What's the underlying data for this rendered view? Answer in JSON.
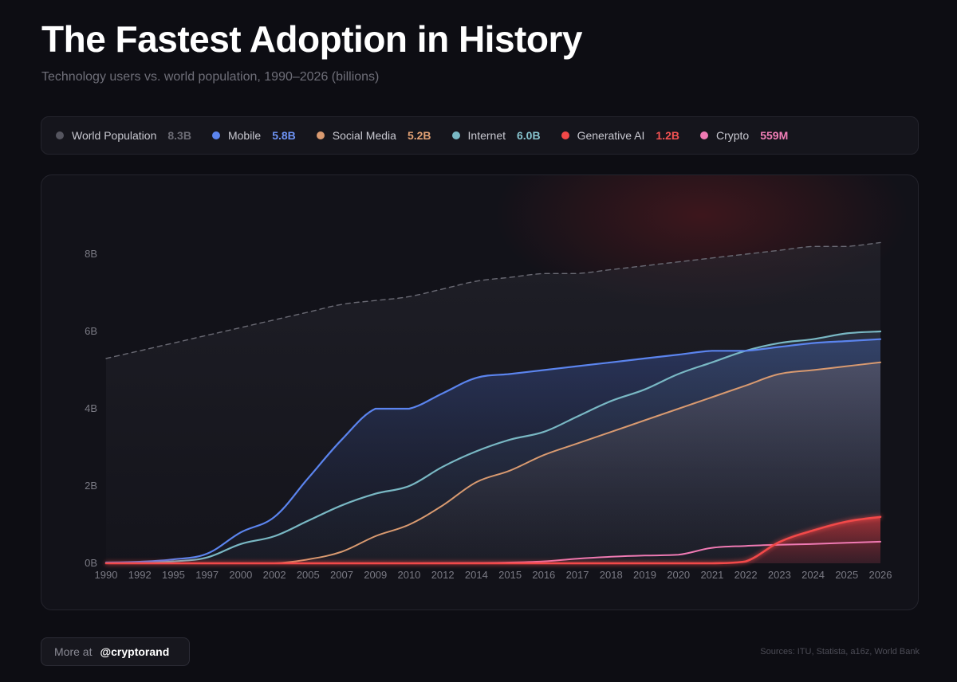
{
  "header": {
    "title": "The Fastest Adoption in History",
    "subtitle": "Technology users vs. world population, 1990–2026 (billions)"
  },
  "legend": [
    {
      "label": "World Population",
      "value": "8.3B",
      "color": "#55555f",
      "value_color": "#6b6b74"
    },
    {
      "label": "Mobile",
      "value": "5.8B",
      "color": "#5b84ee",
      "value_color": "#6e93f4"
    },
    {
      "label": "Social Media",
      "value": "5.2B",
      "color": "#d99a70",
      "value_color": "#e1a074"
    },
    {
      "label": "Internet",
      "value": "6.0B",
      "color": "#79b8c4",
      "value_color": "#86c3cd"
    },
    {
      "label": "Generative AI",
      "value": "1.2B",
      "color": "#f24848",
      "value_color": "#f25252"
    },
    {
      "label": "Crypto",
      "value": "559M",
      "color": "#f07ab4",
      "value_color": "#f27fb8"
    }
  ],
  "chart_data": {
    "type": "area",
    "title": "The Fastest Adoption in History",
    "ylabel": "billions",
    "ylim": [
      0,
      8
    ],
    "yticks": [
      0,
      2,
      4,
      6,
      8
    ],
    "ytick_labels": [
      "0B",
      "2B",
      "4B",
      "6B",
      "8B"
    ],
    "categories": [
      "1990",
      "1992",
      "1995",
      "1997",
      "2000",
      "2002",
      "2005",
      "2007",
      "2009",
      "2010",
      "2012",
      "2014",
      "2015",
      "2016",
      "2017",
      "2018",
      "2019",
      "2020",
      "2021",
      "2022",
      "2023",
      "2024",
      "2025",
      "2026"
    ],
    "series": [
      {
        "key": "population",
        "name": "World Population",
        "color": "#6a6a74",
        "values": [
          5.3,
          5.5,
          5.7,
          5.9,
          6.1,
          6.3,
          6.5,
          6.7,
          6.8,
          6.9,
          7.1,
          7.3,
          7.4,
          7.5,
          7.5,
          7.6,
          7.7,
          7.8,
          7.9,
          8.0,
          8.1,
          8.2,
          8.2,
          8.3
        ]
      },
      {
        "key": "mobile",
        "name": "Mobile",
        "color": "#5b84ee",
        "values": [
          0.02,
          0.04,
          0.1,
          0.25,
          0.8,
          1.2,
          2.2,
          3.2,
          4.0,
          4.0,
          4.4,
          4.8,
          4.9,
          5.0,
          5.1,
          5.2,
          5.3,
          5.4,
          5.5,
          5.5,
          5.6,
          5.7,
          5.75,
          5.8
        ]
      },
      {
        "key": "internet",
        "name": "Internet",
        "color": "#79b8c4",
        "values": [
          0.01,
          0.02,
          0.05,
          0.15,
          0.5,
          0.7,
          1.1,
          1.5,
          1.8,
          2.0,
          2.5,
          2.9,
          3.2,
          3.4,
          3.8,
          4.2,
          4.5,
          4.9,
          5.2,
          5.5,
          5.7,
          5.8,
          5.95,
          6.0
        ]
      },
      {
        "key": "social",
        "name": "Social Media",
        "color": "#d99a70",
        "values": [
          0,
          0,
          0,
          0,
          0,
          0,
          0.1,
          0.3,
          0.7,
          1.0,
          1.5,
          2.1,
          2.4,
          2.8,
          3.1,
          3.4,
          3.7,
          4.0,
          4.3,
          4.6,
          4.9,
          5.0,
          5.1,
          5.2
        ]
      },
      {
        "key": "crypto",
        "name": "Crypto",
        "color": "#f07ab4",
        "values": [
          0,
          0,
          0,
          0,
          0,
          0,
          0,
          0,
          0,
          0,
          0.005,
          0.01,
          0.02,
          0.05,
          0.12,
          0.17,
          0.2,
          0.22,
          0.4,
          0.45,
          0.48,
          0.5,
          0.53,
          0.559
        ]
      },
      {
        "key": "genai",
        "name": "Generative AI",
        "color": "#f24848",
        "values": [
          0,
          0,
          0,
          0,
          0,
          0,
          0,
          0,
          0,
          0,
          0,
          0,
          0,
          0,
          0,
          0,
          0,
          0,
          0,
          0.05,
          0.55,
          0.85,
          1.08,
          1.2
        ]
      }
    ]
  },
  "footer": {
    "more_prefix": "More at",
    "more_handle": "@cryptorand",
    "sources": "Sources: ITU, Statista, a16z, World Bank"
  }
}
